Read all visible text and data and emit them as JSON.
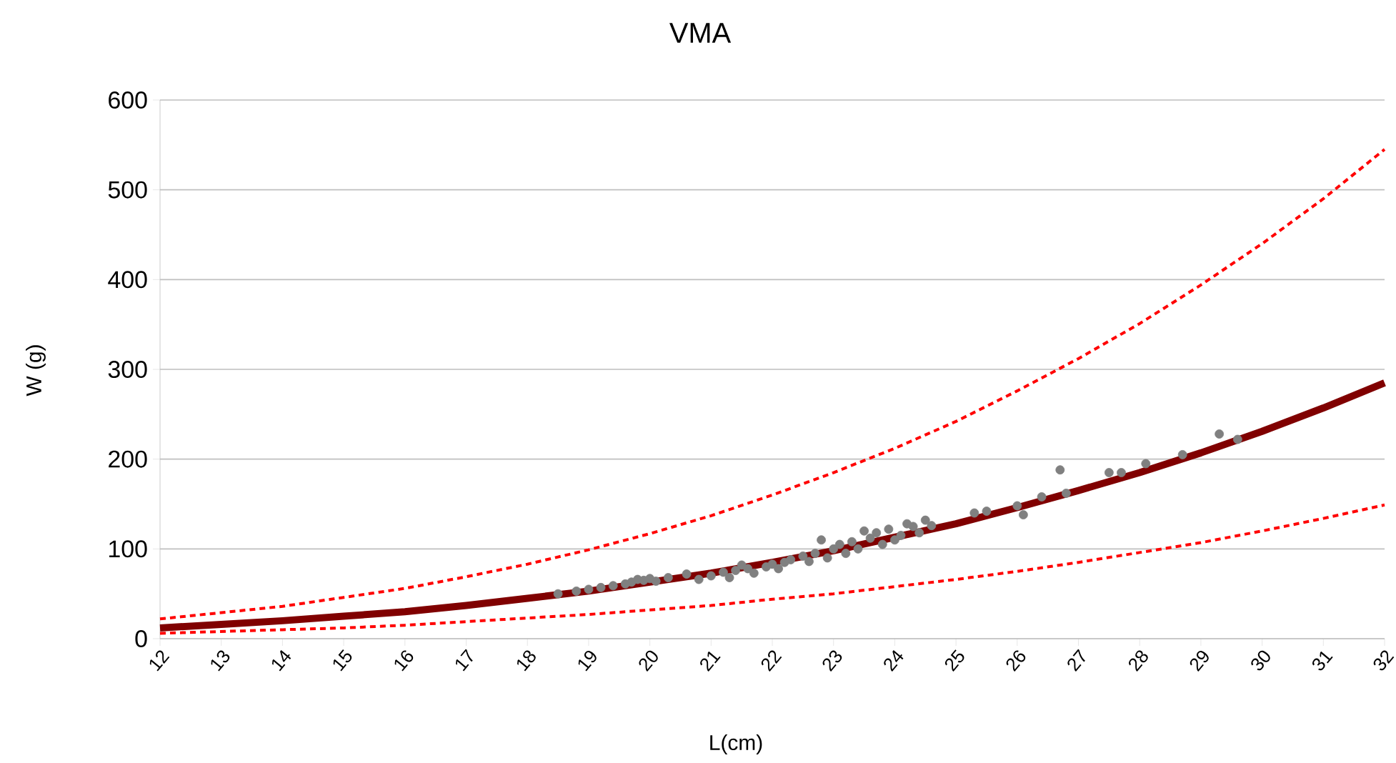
{
  "chart_data": {
    "type": "scatter",
    "title": "VMA",
    "xlabel": "L(cm)",
    "ylabel": "W (g)",
    "xlim": [
      12,
      32
    ],
    "xticks": [
      12,
      13,
      14,
      15,
      16,
      17,
      18,
      19,
      20,
      21,
      22,
      23,
      24,
      25,
      26,
      27,
      28,
      29,
      30,
      31,
      32
    ],
    "ylim": [
      0,
      600
    ],
    "yticks": [
      0,
      100,
      200,
      300,
      400,
      500,
      600
    ],
    "grid": "y",
    "series": [
      {
        "type": "line",
        "color": "#800000",
        "marker": "none",
        "line_style": "solid",
        "x": [
          12,
          13,
          14,
          15,
          16,
          17,
          18,
          19,
          20,
          21,
          22,
          23,
          24,
          25,
          26,
          27,
          28,
          29,
          30,
          31,
          32
        ],
        "values": [
          12,
          16,
          20,
          25,
          30,
          37,
          45,
          53,
          63,
          73,
          85,
          98,
          113,
          128,
          146,
          165,
          185,
          207,
          231,
          257,
          285
        ]
      },
      {
        "type": "line",
        "color": "#ff0000",
        "marker": "none",
        "line_style": "dashed",
        "x": [
          12,
          13,
          14,
          15,
          16,
          17,
          18,
          19,
          20,
          21,
          22,
          23,
          24,
          25,
          26,
          27,
          28,
          29,
          30,
          31,
          32
        ],
        "values": [
          22,
          29,
          36,
          46,
          56,
          69,
          83,
          99,
          117,
          137,
          160,
          185,
          212,
          242,
          276,
          312,
          351,
          394,
          440,
          490,
          545
        ]
      },
      {
        "type": "line",
        "color": "#ff0000",
        "marker": "none",
        "line_style": "dashed",
        "x": [
          12,
          13,
          14,
          15,
          16,
          17,
          18,
          19,
          20,
          21,
          22,
          23,
          24,
          25,
          26,
          27,
          28,
          29,
          30,
          31,
          32
        ],
        "values": [
          6,
          8,
          10,
          12,
          15,
          19,
          23,
          27,
          32,
          37,
          44,
          50,
          58,
          66,
          75,
          85,
          96,
          107,
          120,
          134,
          149
        ]
      },
      {
        "color": "#808080",
        "marker": "circle",
        "x": [
          18.5,
          18.8,
          19.0,
          19.2,
          19.4,
          19.6,
          19.7,
          19.8,
          19.9,
          20.0,
          20.1,
          20.3,
          20.6,
          20.8,
          21.0,
          21.2,
          21.3,
          21.4,
          21.5,
          21.6,
          21.7,
          21.9,
          22.0,
          22.1,
          22.2,
          22.3,
          22.5,
          22.6,
          22.7,
          22.8,
          22.9,
          23.0,
          23.1,
          23.2,
          23.3,
          23.4,
          23.5,
          23.6,
          23.7,
          23.8,
          23.9,
          24.0,
          24.1,
          24.2,
          24.3,
          24.4,
          24.5,
          24.6,
          25.3,
          25.5,
          26.0,
          26.1,
          26.4,
          26.7,
          26.8,
          27.5,
          27.7,
          28.1,
          28.7,
          29.3,
          29.6
        ],
        "values": [
          50,
          53,
          55,
          57,
          59,
          61,
          63,
          66,
          65,
          67,
          64,
          68,
          72,
          66,
          70,
          74,
          68,
          76,
          82,
          78,
          73,
          80,
          83,
          78,
          85,
          88,
          92,
          86,
          95,
          110,
          90,
          100,
          105,
          95,
          108,
          100,
          120,
          112,
          118,
          105,
          122,
          110,
          115,
          128,
          125,
          118,
          132,
          126,
          140,
          142,
          148,
          138,
          158,
          188,
          162,
          185,
          185,
          195,
          205,
          228,
          222
        ]
      }
    ]
  }
}
